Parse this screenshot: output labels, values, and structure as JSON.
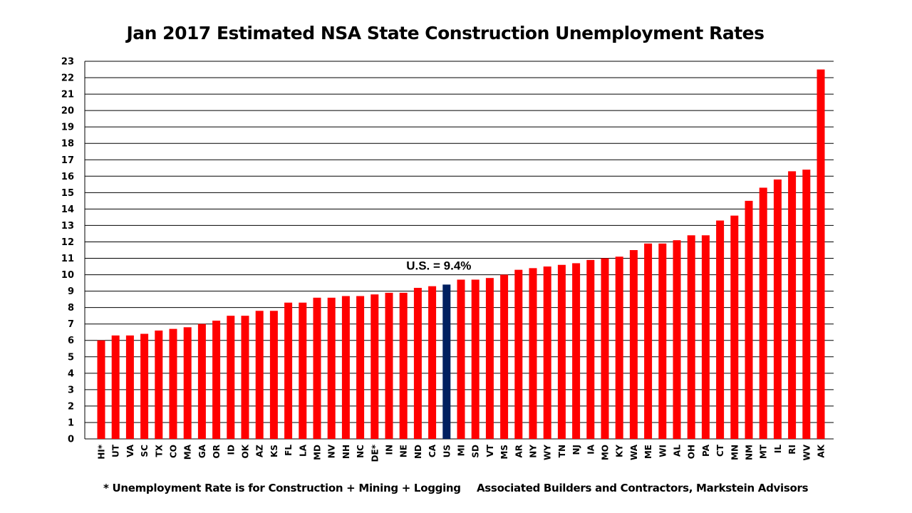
{
  "chart_data": {
    "type": "bar",
    "title": "Jan 2017 Estimated NSA State Construction Unemployment Rates",
    "xlabel": "",
    "ylabel": "",
    "ylim": [
      0,
      23
    ],
    "yticks": [
      0,
      1,
      2,
      3,
      4,
      5,
      6,
      7,
      8,
      9,
      10,
      11,
      12,
      13,
      14,
      15,
      16,
      17,
      18,
      19,
      20,
      21,
      22,
      23
    ],
    "grid": true,
    "categories": [
      "HI*",
      "UT",
      "VA",
      "SC",
      "TX",
      "CO",
      "MA",
      "GA",
      "OR",
      "ID",
      "OK",
      "AZ",
      "KS",
      "FL",
      "LA",
      "MD",
      "NV",
      "NH",
      "NC",
      "DE*",
      "IN",
      "NE",
      "ND",
      "CA",
      "US",
      "MI",
      "SD",
      "VT",
      "MS",
      "AR",
      "NY",
      "WY",
      "TN",
      "NJ",
      "IA",
      "MO",
      "KY",
      "WA",
      "ME",
      "WI",
      "AL",
      "OH",
      "PA",
      "CT",
      "MN",
      "NM",
      "MT",
      "IL",
      "RI",
      "WV",
      "AK"
    ],
    "values": [
      6.0,
      6.3,
      6.3,
      6.4,
      6.6,
      6.7,
      6.8,
      7.0,
      7.2,
      7.5,
      7.5,
      7.8,
      7.8,
      8.3,
      8.3,
      8.6,
      8.6,
      8.7,
      8.7,
      8.8,
      8.9,
      8.9,
      9.2,
      9.3,
      9.4,
      9.7,
      9.7,
      9.8,
      10.0,
      10.3,
      10.4,
      10.5,
      10.6,
      10.7,
      10.9,
      11.0,
      11.1,
      11.5,
      11.9,
      11.9,
      12.1,
      12.4,
      12.4,
      13.3,
      13.6,
      14.5,
      15.3,
      15.8,
      16.3,
      16.4,
      22.5
    ],
    "highlight_category": "US",
    "annotation": "U.S. = 9.4%",
    "colors": {
      "bar": "#ff0000",
      "highlight": "#002060",
      "grid": "#000000"
    }
  },
  "footnote": "* Unemployment Rate is for Construction + Mining + Logging",
  "source": "Associated Builders and Contractors, Markstein Advisors"
}
